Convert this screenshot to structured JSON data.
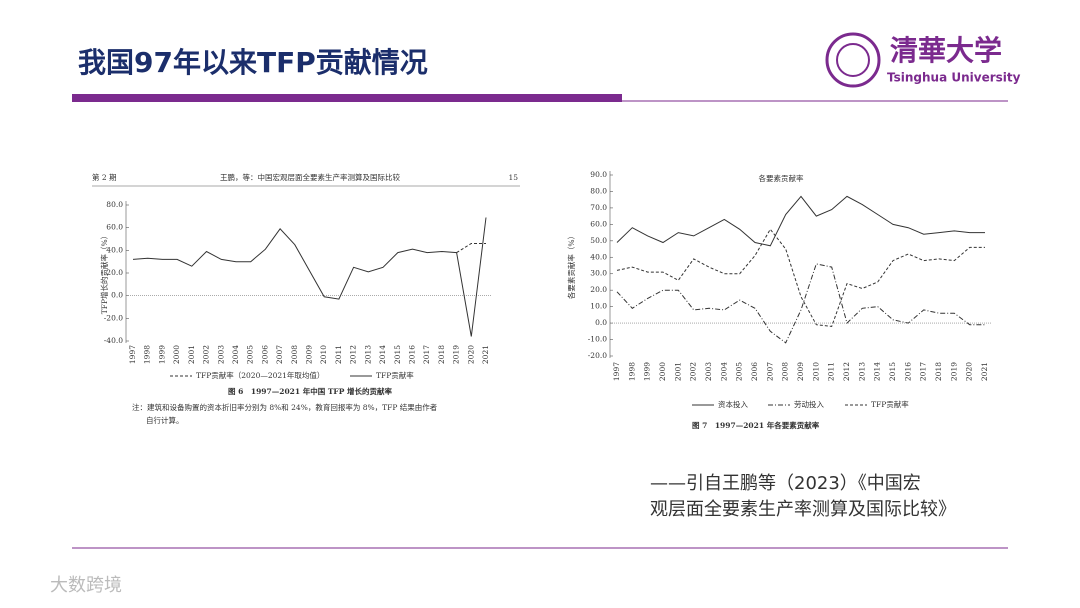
{
  "slide_title": "我国97年以来TFP贡献情况",
  "logo": {
    "name_cn": "清華大学",
    "name_en": "Tsinghua University"
  },
  "citation": [
    "——引自王鹏等（2023）《中国宏",
    "观层面全要素生产率测算及国际比较》"
  ],
  "watermark": "大数跨境",
  "figure_left": {
    "issue": "第 2 期",
    "running_head": "王鹏，等：中国宏观层面全要素生产率测算及国际比较",
    "page": "15",
    "caption": "图 6　1997—2021 年中国 TFP 增长的贡献率",
    "note": [
      "注：建筑和设备购置的资本折旧率分别为 8%和 24%，教育回报率为 8%，TFP 结果由作者",
      "自行计算。"
    ]
  },
  "figure_right": {
    "caption": "图 7　1997—2021 年各要素贡献率"
  },
  "chart_data": [
    {
      "type": "line",
      "ylabel": "TFP增长的贡献率（%）",
      "categories": [
        "1997",
        "1998",
        "1999",
        "2000",
        "2001",
        "2002",
        "2003",
        "2004",
        "2005",
        "2006",
        "2007",
        "2008",
        "2009",
        "2010",
        "2011",
        "2012",
        "2013",
        "2014",
        "2015",
        "2016",
        "2017",
        "2018",
        "2019",
        "2020",
        "2021"
      ],
      "series": [
        {
          "name": "TFP贡献率（2020—2021年取均值）",
          "color": "#333333",
          "line_style": "dashed",
          "values": [
            null,
            null,
            null,
            null,
            null,
            null,
            null,
            null,
            null,
            null,
            null,
            null,
            null,
            null,
            null,
            null,
            null,
            null,
            null,
            null,
            null,
            null,
            38,
            46,
            46
          ]
        },
        {
          "name": "TFP贡献率",
          "color": "#333333",
          "line_style": "solid",
          "values": [
            32,
            33,
            32,
            32,
            26,
            39,
            32,
            30,
            30,
            41,
            59,
            45,
            22,
            -1,
            -3,
            25,
            21,
            25,
            38,
            41,
            38,
            39,
            38,
            -36,
            69
          ]
        }
      ],
      "ylim": [
        -40,
        80
      ],
      "yticks": [
        {
          "value": -40,
          "label": "-40.0"
        },
        {
          "value": -20,
          "label": "-20.0"
        },
        {
          "value": 0,
          "label": "0.0"
        },
        {
          "value": 20,
          "label": "20.0"
        },
        {
          "value": 40,
          "label": "40.0"
        },
        {
          "value": 60,
          "label": "60.0"
        },
        {
          "value": 80,
          "label": "80.0"
        }
      ]
    },
    {
      "type": "line",
      "title": "各要素贡献率",
      "ylabel": "各要素贡献率（%）",
      "categories": [
        "1997",
        "1998",
        "1999",
        "2000",
        "2001",
        "2002",
        "2003",
        "2004",
        "2005",
        "2006",
        "2007",
        "2008",
        "2009",
        "2010",
        "2011",
        "2012",
        "2013",
        "2014",
        "2015",
        "2016",
        "2017",
        "2018",
        "2019",
        "2020",
        "2021"
      ],
      "series": [
        {
          "name": "资本投入",
          "color": "#333333",
          "line_style": "solid",
          "values": [
            49,
            58,
            53,
            49,
            55,
            53,
            58,
            63,
            57,
            49,
            47,
            66,
            77,
            65,
            69,
            77,
            72,
            66,
            60,
            58,
            54,
            55,
            56,
            55,
            55
          ]
        },
        {
          "name": "劳动投入",
          "color": "#333333",
          "line_style": "dashdot",
          "values": [
            19,
            9,
            15,
            20,
            20,
            8,
            9,
            8,
            14,
            9,
            -5,
            -12,
            8,
            36,
            34,
            0,
            9,
            10,
            2,
            0,
            8,
            6,
            6,
            -1,
            -1
          ]
        },
        {
          "name": "TFP贡献率",
          "color": "#333333",
          "line_style": "dashed",
          "values": [
            32,
            34,
            31,
            31,
            26,
            39,
            34,
            30,
            30,
            41,
            57,
            45,
            16,
            -1,
            -2,
            24,
            21,
            25,
            38,
            42,
            38,
            39,
            38,
            46,
            46
          ]
        }
      ],
      "ylim": [
        -20,
        90
      ],
      "yticks": [
        {
          "value": -20,
          "label": "-20.0"
        },
        {
          "value": -10,
          "label": "-10.0"
        },
        {
          "value": 0,
          "label": "0.0"
        },
        {
          "value": 10,
          "label": "10.0"
        },
        {
          "value": 20,
          "label": "20.0"
        },
        {
          "value": 30,
          "label": "30.0"
        },
        {
          "value": 40,
          "label": "40.0"
        },
        {
          "value": 50,
          "label": "50.0"
        },
        {
          "value": 60,
          "label": "60.0"
        },
        {
          "value": 70,
          "label": "70.0"
        },
        {
          "value": 80,
          "label": "80.0"
        },
        {
          "value": 90,
          "label": "90.0"
        }
      ]
    }
  ]
}
